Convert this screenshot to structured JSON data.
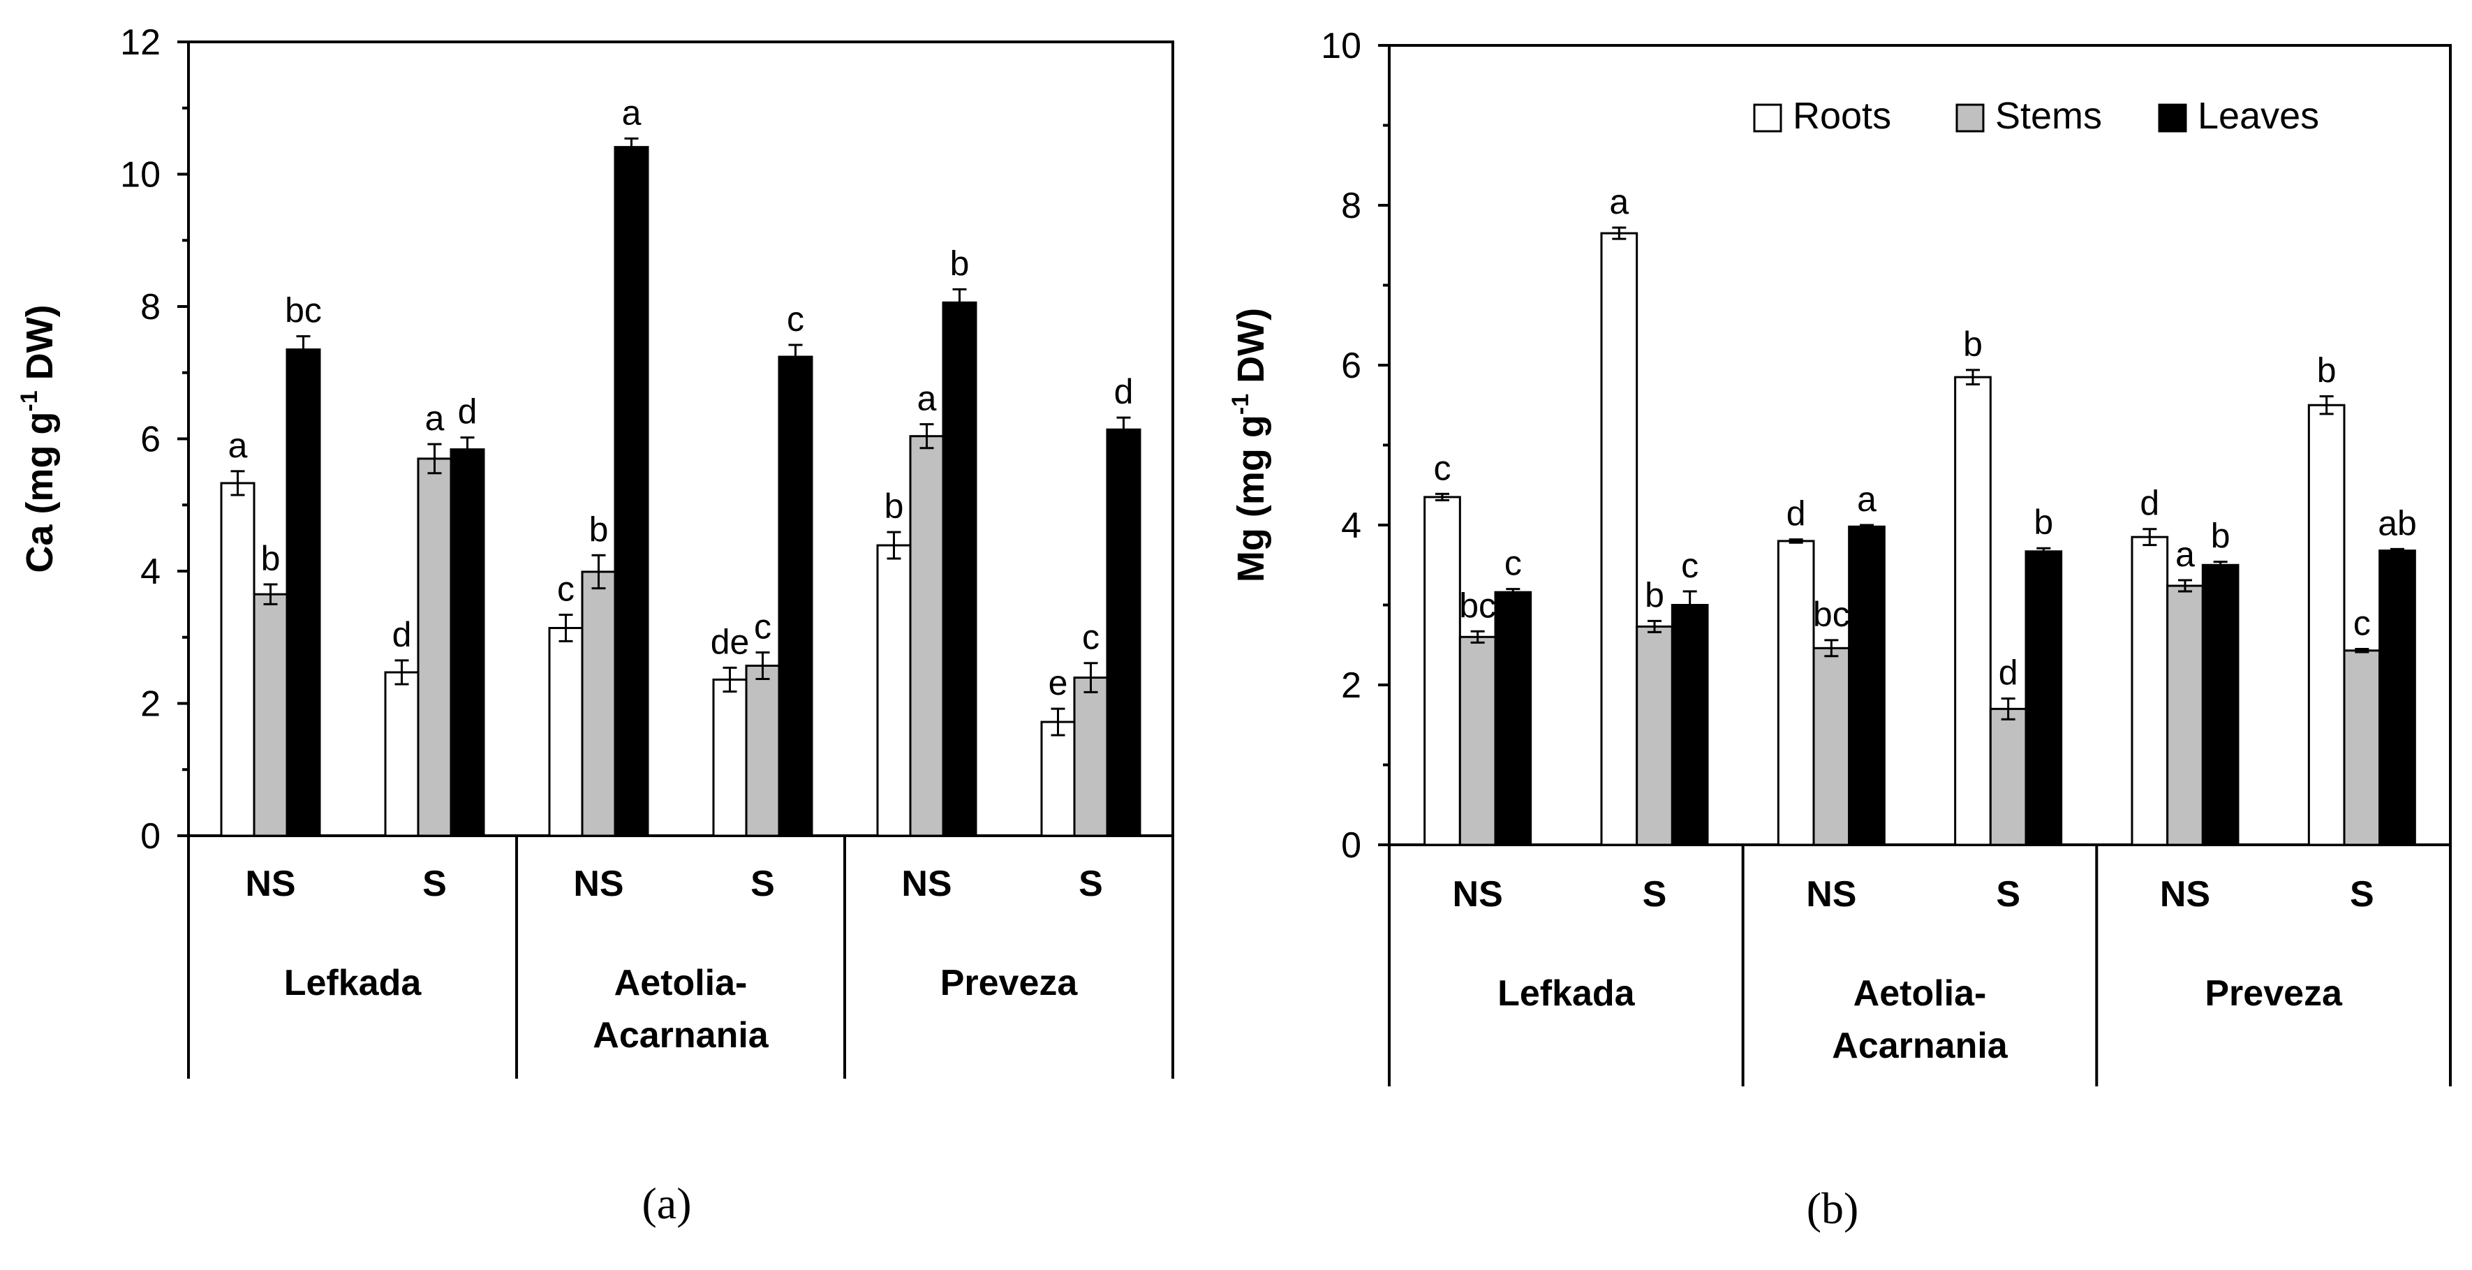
{
  "chart_data": [
    {
      "type": "bar",
      "panel": "(a)",
      "ylabel_main": "Ca (mg g",
      "ylabel_sup": "-1",
      "ylabel_tail": " DW)",
      "ylim": [
        0,
        12
      ],
      "yticks": [
        "0",
        "2",
        "4",
        "6",
        "8",
        "10",
        "12"
      ],
      "yticks_values": [
        0,
        2,
        4,
        6,
        8,
        10,
        12
      ],
      "groups": [
        {
          "label": "NS",
          "region": "Lefkada"
        },
        {
          "label": "S",
          "region": "Lefkada"
        },
        {
          "label": "NS",
          "region": "Aetolia-Acarnania"
        },
        {
          "label": "S",
          "region": "Aetolia-Acarnania"
        },
        {
          "label": "NS",
          "region": "Preveza"
        },
        {
          "label": "S",
          "region": "Preveza"
        }
      ],
      "regions": [
        {
          "line1": "Lefkada",
          "line2": ""
        },
        {
          "line1": "Aetolia-",
          "line2": "Acarnania"
        },
        {
          "line1": "Preveza",
          "line2": ""
        }
      ],
      "series": [
        {
          "name": "Roots",
          "color": "#ffffff",
          "values": [
            5.33,
            2.47,
            3.14,
            2.36,
            4.39,
            1.72
          ],
          "errors": [
            0.18,
            0.18,
            0.2,
            0.18,
            0.2,
            0.2
          ],
          "letters": [
            "a",
            "d",
            "c",
            "de",
            "b",
            "e"
          ]
        },
        {
          "name": "Stems",
          "color": "#c0c0c0",
          "values": [
            3.65,
            5.7,
            3.99,
            2.57,
            6.04,
            2.39
          ],
          "errors": [
            0.15,
            0.22,
            0.25,
            0.2,
            0.18,
            0.22
          ],
          "letters": [
            "b",
            "a",
            "b",
            "c",
            "a",
            "c"
          ]
        },
        {
          "name": "Leaves",
          "color": "#000000",
          "values": [
            7.35,
            5.84,
            10.41,
            7.24,
            8.06,
            6.14
          ],
          "errors": [
            0.2,
            0.18,
            0.13,
            0.18,
            0.2,
            0.18
          ],
          "letters": [
            "bc",
            "d",
            "a",
            "c",
            "b",
            "d"
          ]
        }
      ]
    },
    {
      "type": "bar",
      "panel": "(b)",
      "ylabel_main": "Mg (mg g",
      "ylabel_sup": "-1",
      "ylabel_tail": " DW)",
      "ylim": [
        0,
        10
      ],
      "yticks": [
        "0",
        "2",
        "4",
        "6",
        "8",
        "10"
      ],
      "yticks_values": [
        0,
        2,
        4,
        6,
        8,
        10
      ],
      "legend": {
        "placement": "top-right",
        "items": [
          "Roots",
          "Stems",
          "Leaves"
        ]
      },
      "groups": [
        {
          "label": "NS",
          "region": "Lefkada"
        },
        {
          "label": "S",
          "region": "Lefkada"
        },
        {
          "label": "NS",
          "region": "Aetolia-Acarnania"
        },
        {
          "label": "S",
          "region": "Aetolia-Acarnania"
        },
        {
          "label": "NS",
          "region": "Preveza"
        },
        {
          "label": "S",
          "region": "Preveza"
        }
      ],
      "regions": [
        {
          "line1": "Lefkada",
          "line2": ""
        },
        {
          "line1": "Aetolia-",
          "line2": "Acarnania"
        },
        {
          "line1": "Preveza",
          "line2": ""
        }
      ],
      "series": [
        {
          "name": "Roots",
          "color": "#ffffff",
          "values": [
            4.35,
            7.65,
            3.8,
            5.85,
            3.85,
            5.5
          ],
          "errors": [
            0.04,
            0.07,
            0.02,
            0.09,
            0.1,
            0.11
          ],
          "letters": [
            "c",
            "a",
            "d",
            "b",
            "d",
            "b"
          ]
        },
        {
          "name": "Stems",
          "color": "#c0c0c0",
          "values": [
            2.6,
            2.73,
            2.46,
            1.7,
            3.24,
            2.43
          ],
          "errors": [
            0.07,
            0.07,
            0.1,
            0.13,
            0.07,
            0.02
          ],
          "letters": [
            "bc",
            "b",
            "bc",
            "d",
            "a",
            "c"
          ]
        },
        {
          "name": "Leaves",
          "color": "#000000",
          "values": [
            3.16,
            3.0,
            3.98,
            3.67,
            3.5,
            3.68
          ],
          "errors": [
            0.04,
            0.17,
            0.02,
            0.04,
            0.04,
            0.02
          ],
          "letters": [
            "c",
            "c",
            "a",
            "b",
            "b",
            "ab"
          ]
        }
      ]
    }
  ]
}
